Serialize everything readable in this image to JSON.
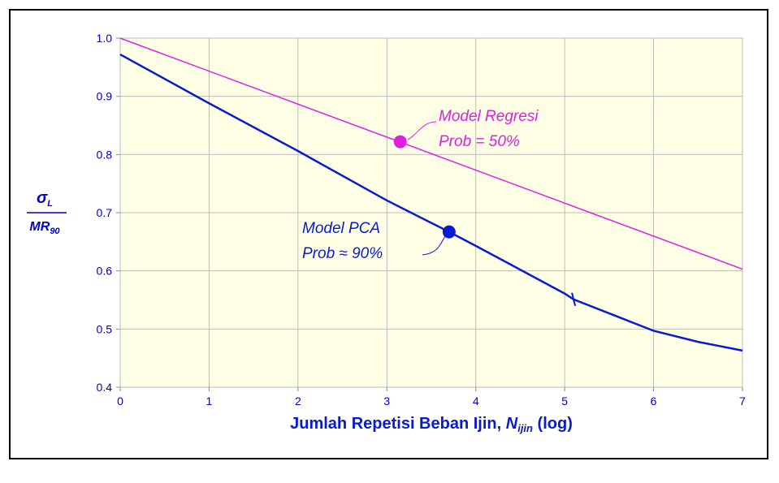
{
  "chart_data": {
    "type": "line",
    "y_label": {
      "numerator": "σ",
      "numerator_sub": "L",
      "denominator": "MR",
      "denominator_sub": "90"
    },
    "x_label": {
      "text": "Jumlah Repetisi Beban Ijin, ",
      "symbol": "N",
      "symbol_sub": "ijin",
      "suffix": " (log)"
    },
    "xlim": [
      0,
      7
    ],
    "xticks": [
      0,
      1,
      2,
      3,
      4,
      5,
      6,
      7
    ],
    "ylim": [
      0.4,
      1.0
    ],
    "yticks": [
      0.4,
      0.5,
      0.6,
      0.7,
      0.8,
      0.9,
      {
        "value": 1.0,
        "label": "1.0"
      }
    ],
    "grid": true,
    "series": [
      {
        "name": "Model Regresi",
        "color": "#e020e0",
        "x": [
          0,
          7
        ],
        "values": [
          1.0,
          0.603
        ],
        "marker": {
          "x": 3.15,
          "y": 0.822
        }
      },
      {
        "name": "Model PCA",
        "color": "#0a1ad0",
        "x": [
          0,
          1,
          2,
          3,
          3.7,
          4,
          5,
          5.1,
          6,
          6.5,
          7
        ],
        "values": [
          0.972,
          0.888,
          0.806,
          0.721,
          0.667,
          0.643,
          0.561,
          0.551,
          0.497,
          0.478,
          0.463
        ],
        "marker": {
          "x": 3.7,
          "y": 0.667
        },
        "tick_mark": {
          "x": 5.1,
          "y": 0.551
        }
      }
    ],
    "annotations": [
      {
        "lines": [
          "Model Regresi",
          "Prob = 50%"
        ],
        "color": "#e020e0"
      },
      {
        "lines": [
          "Model PCA",
          "Prob  ≈  90%"
        ],
        "color": "#0a1ad0"
      }
    ]
  }
}
